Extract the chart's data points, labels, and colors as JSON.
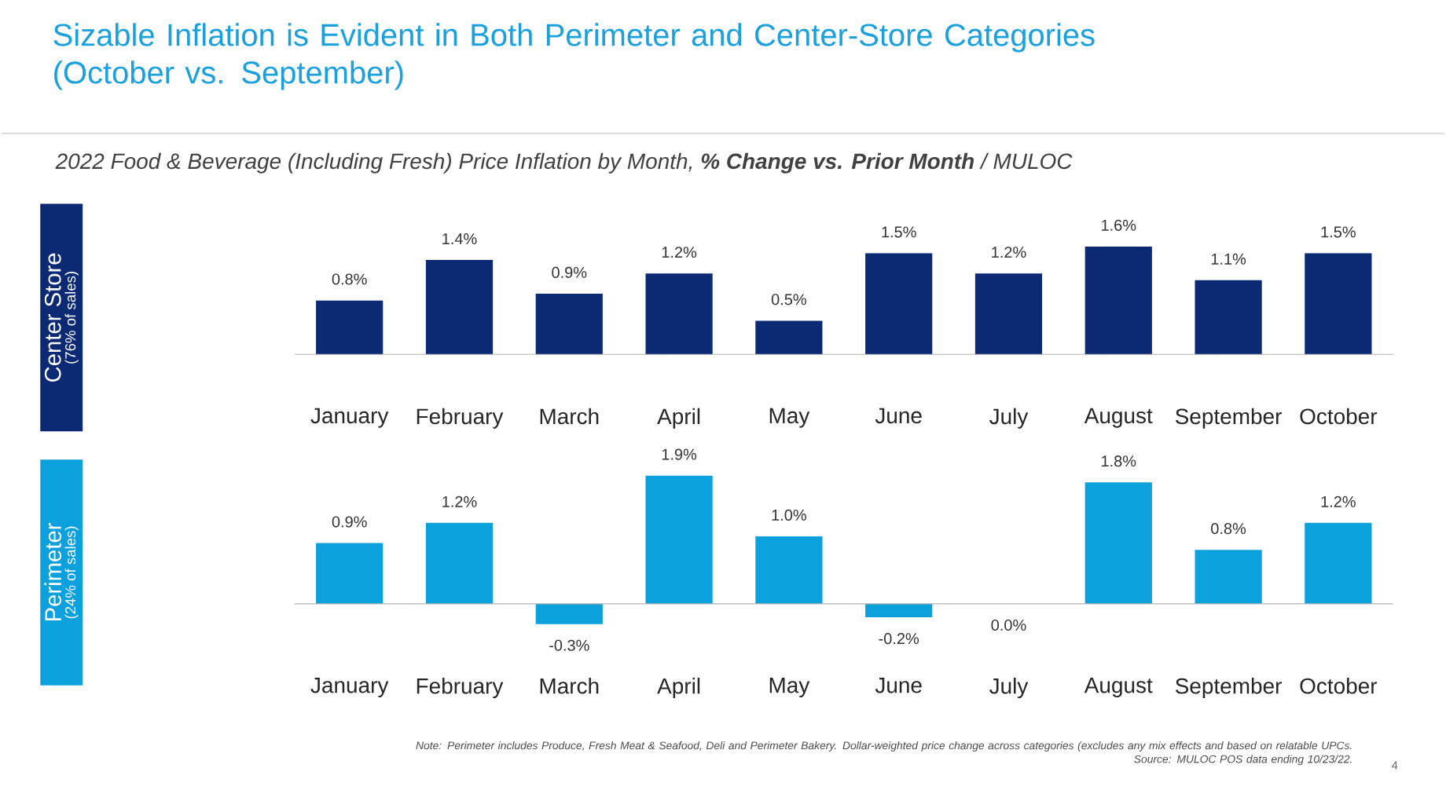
{
  "chart_data": [
    {
      "type": "bar",
      "title": "Sizable Inflation is Evident in Both Perimeter and Center-Store Categories (October vs. September)",
      "subtitle": "2022 Food & Beverage (Including Fresh) Price Inflation by Month, **% Change vs. Prior Month** / MULOC",
      "ylabel": "Center Store",
      "annotations": [
        "(76% of sales)"
      ],
      "color": "#0c2a74",
      "tick_labels": "x",
      "categories": [
        "January",
        "February",
        "March",
        "April",
        "May",
        "June",
        "July",
        "August",
        "September",
        "October"
      ],
      "values": [
        0.8,
        1.4,
        0.9,
        1.2,
        0.5,
        1.5,
        1.2,
        1.6,
        1.1,
        1.5
      ],
      "value_labels": [
        "0.8%",
        "1.4%",
        "0.9%",
        "1.2%",
        "0.5%",
        "1.5%",
        "1.2%",
        "1.6%",
        "1.1%",
        "1.5%"
      ]
    },
    {
      "type": "bar",
      "ylabel": "Perimeter",
      "annotations": [
        "(24% of sales)",
        "Note: Perimeter includes Produce, Fresh Meat & Seafood, Deli and Perimeter Bakery. Dollar-weighted price change across categories (excludes any mix effects and based on relatable UPCs. Source: MULOC POS data ending 10/23/22.",
        "4"
      ],
      "color": "#0ca0dc",
      "tick_labels": "x",
      "categories": [
        "January",
        "February",
        "March",
        "April",
        "May",
        "June",
        "July",
        "August",
        "September",
        "October"
      ],
      "values": [
        0.9,
        1.2,
        -0.3,
        1.9,
        1.0,
        -0.2,
        0.0,
        1.8,
        0.8,
        1.2
      ],
      "value_labels": [
        "0.9%",
        "1.2%",
        "-0.3%",
        "1.9%",
        "1.0%",
        "-0.2%",
        "0.0%",
        "1.8%",
        "0.8%",
        "1.2%"
      ]
    }
  ]
}
